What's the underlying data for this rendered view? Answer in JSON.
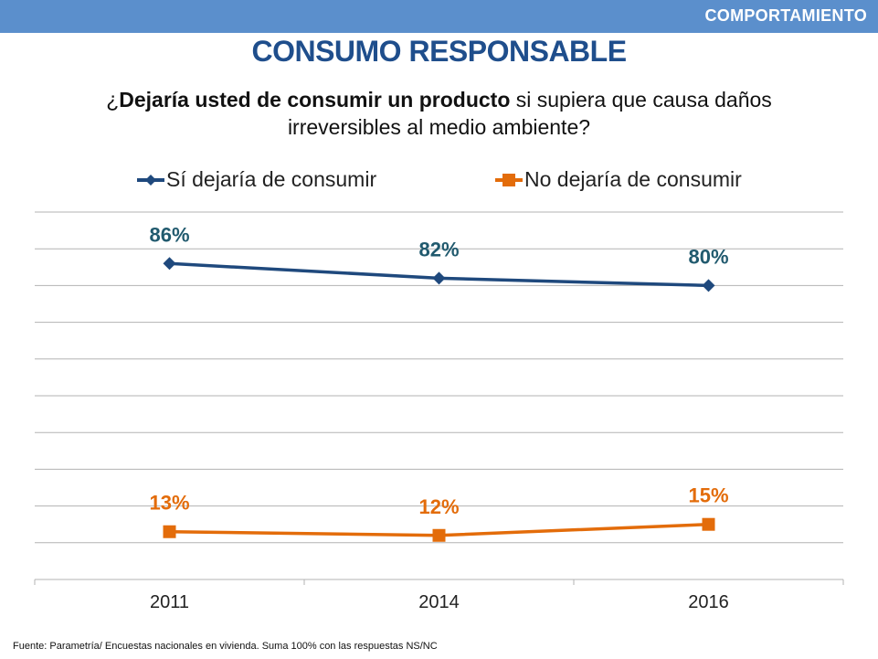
{
  "header": {
    "section_label": "COMPORTAMIENTO",
    "title": "CONSUMO RESPONSABLE",
    "question_prefix": "¿",
    "question_bold": "Dejaría usted de consumir un producto",
    "question_rest": " si supiera que causa daños irreversibles al medio ambiente?"
  },
  "colors": {
    "header_bar": "#5b8fcc",
    "title": "#1f4e8c",
    "series_si": "#1f497d",
    "series_si_label": "#215a6e",
    "series_no": "#e36c0a",
    "grid": "#b3b3b3"
  },
  "chart_data": {
    "type": "line",
    "title": "",
    "xlabel": "",
    "ylabel": "",
    "categories": [
      "2011",
      "2014",
      "2016"
    ],
    "ylim": [
      0,
      100
    ],
    "grid": true,
    "legend_position": "top",
    "series": [
      {
        "name": "Sí dejaría de consumir",
        "values": [
          86,
          82,
          80
        ],
        "labels": [
          "86%",
          "82%",
          "80%"
        ],
        "marker": "diamond"
      },
      {
        "name": "No dejaría de consumir",
        "values": [
          13,
          12,
          15
        ],
        "labels": [
          "13%",
          "12%",
          "15%"
        ],
        "marker": "square"
      }
    ]
  },
  "footer": {
    "source": "Fuente: Parametría/ Encuestas nacionales en vivienda. Suma 100% con las respuestas NS/NC"
  }
}
